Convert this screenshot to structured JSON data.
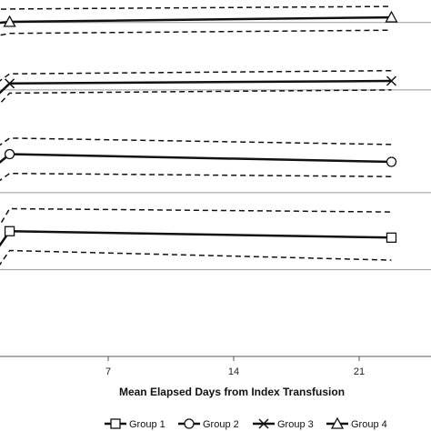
{
  "chart_data": {
    "type": "line",
    "xlabel": "Mean Elapsed Days from Index Transfusion",
    "ylabel": "",
    "title": "",
    "x_ticks": [
      7,
      14,
      21
    ],
    "xlim": [
      1,
      25
    ],
    "ylim": [
      -5.15,
      0.4
    ],
    "grid": "horizontal reference lines",
    "legend_position": "bottom",
    "series": [
      {
        "name": "Group 1",
        "marker": "square",
        "x": [
          0,
          1.5,
          22.8
        ],
        "y": [
          -3.8,
          -3.2,
          -3.3
        ],
        "upper": [
          -3.55,
          -2.85,
          -2.9
        ],
        "lower": [
          -4.1,
          -3.5,
          -3.65
        ],
        "reference": -3.8
      },
      {
        "name": "Group 2",
        "marker": "circle",
        "x": [
          0,
          1.5,
          22.8
        ],
        "y": [
          -2.35,
          -2.0,
          -2.12
        ],
        "upper": [
          -2.05,
          -1.75,
          -1.85
        ],
        "lower": [
          -2.6,
          -2.3,
          -2.35
        ],
        "reference": -2.6
      },
      {
        "name": "Group 3",
        "marker": "x",
        "x": [
          0,
          1.5,
          22.8
        ],
        "y": [
          -1.3,
          -0.9,
          -0.86
        ],
        "upper": [
          -1.05,
          -0.75,
          -0.7
        ],
        "lower": [
          -1.5,
          -1.05,
          -1.0
        ],
        "reference": -1.0
      },
      {
        "name": "Group 4",
        "marker": "triangle",
        "x": [
          0,
          1.5,
          22.8
        ],
        "y": [
          0.02,
          0.06,
          0.13
        ],
        "upper": [
          0.25,
          0.26,
          0.3
        ],
        "lower": [
          -0.2,
          -0.12,
          -0.07
        ],
        "reference": 0.05
      }
    ]
  }
}
